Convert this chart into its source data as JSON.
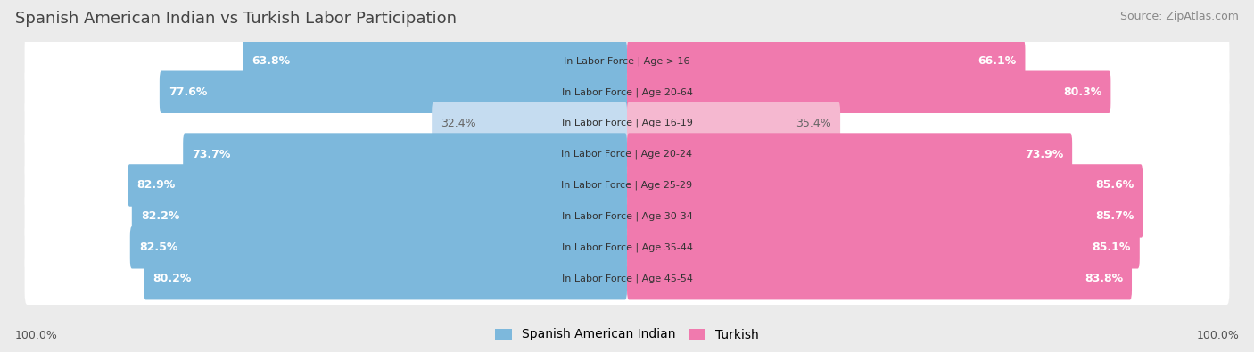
{
  "title": "Spanish American Indian vs Turkish Labor Participation",
  "source": "Source: ZipAtlas.com",
  "categories": [
    "In Labor Force | Age > 16",
    "In Labor Force | Age 20-64",
    "In Labor Force | Age 16-19",
    "In Labor Force | Age 20-24",
    "In Labor Force | Age 25-29",
    "In Labor Force | Age 30-34",
    "In Labor Force | Age 35-44",
    "In Labor Force | Age 45-54"
  ],
  "left_values": [
    63.8,
    77.6,
    32.4,
    73.7,
    82.9,
    82.2,
    82.5,
    80.2
  ],
  "right_values": [
    66.1,
    80.3,
    35.4,
    73.9,
    85.6,
    85.7,
    85.1,
    83.8
  ],
  "left_label": "Spanish American Indian",
  "right_label": "Turkish",
  "left_color_strong": "#7DB8DC",
  "left_color_weak": "#C5DCF0",
  "right_color_strong": "#F07AAE",
  "right_color_weak": "#F5B8D0",
  "bg_color": "#EBEBEB",
  "bar_bg_color": "#FFFFFF",
  "max_value": 100.0,
  "axis_label_left": "100.0%",
  "axis_label_right": "100.0%",
  "title_fontsize": 13,
  "source_fontsize": 9,
  "bar_fontsize": 9,
  "legend_fontsize": 10,
  "weak_indices": [
    2
  ]
}
